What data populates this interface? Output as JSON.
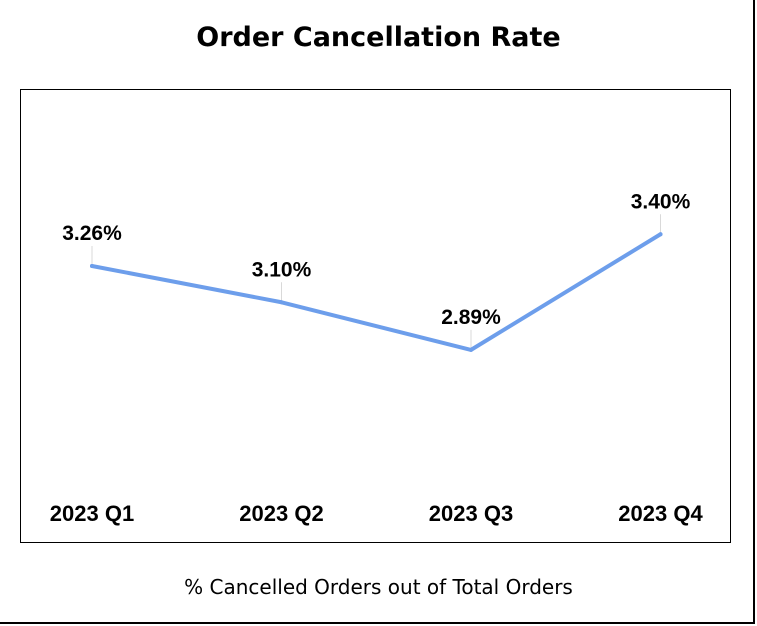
{
  "chart_data": {
    "type": "line",
    "title": "Order Cancellation Rate",
    "caption": "% Cancelled Orders out of Total Orders",
    "categories": [
      "2023 Q1",
      "2023 Q2",
      "2023 Q3",
      "2023 Q4"
    ],
    "series": [
      {
        "values": [
          3.26,
          3.1,
          2.89,
          3.4
        ],
        "labels": [
          "3.26%",
          "3.10%",
          "2.89%",
          "3.40%"
        ],
        "color": "#6d9eeb"
      }
    ],
    "ylim": [
      1.5,
      4.5
    ],
    "grid": false,
    "legend": "none"
  }
}
